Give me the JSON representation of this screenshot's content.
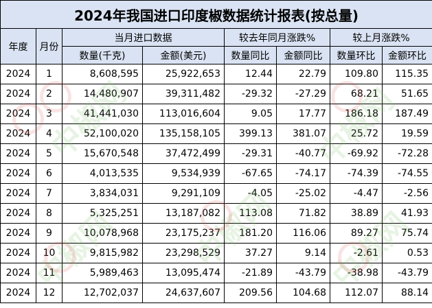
{
  "title": "2024年我国进口印度椒数据统计报表(按总量)",
  "headers": {
    "year": "年度",
    "month": "月份",
    "group_current": "当月进口数据",
    "group_yoy": "较去年同月涨跌%",
    "group_mom": "较上月涨跌%",
    "quantity": "数量(千克)",
    "amount": "金额(美元)",
    "qty_yoy": "数量同比",
    "amt_yoy": "金额同比",
    "qty_mom": "数量环比",
    "amt_mom": "金额环比"
  },
  "rows": [
    {
      "year": "2024",
      "month": "1",
      "quantity": "8,608,595",
      "amount": "25,922,653",
      "qty_yoy": "12.44",
      "amt_yoy": "22.79",
      "qty_mom": "109.80",
      "amt_mom": "115.35"
    },
    {
      "year": "2024",
      "month": "2",
      "quantity": "14,480,907",
      "amount": "39,311,482",
      "qty_yoy": "-29.32",
      "amt_yoy": "-27.29",
      "qty_mom": "68.21",
      "amt_mom": "51.65"
    },
    {
      "year": "2024",
      "month": "3",
      "quantity": "41,441,030",
      "amount": "113,016,604",
      "qty_yoy": "9.05",
      "amt_yoy": "17.77",
      "qty_mom": "186.18",
      "amt_mom": "187.49"
    },
    {
      "year": "2024",
      "month": "4",
      "quantity": "52,100,020",
      "amount": "135,158,105",
      "qty_yoy": "399.13",
      "amt_yoy": "381.07",
      "qty_mom": "25.72",
      "amt_mom": "19.59"
    },
    {
      "year": "2024",
      "month": "5",
      "quantity": "15,670,548",
      "amount": "37,472,499",
      "qty_yoy": "-29.31",
      "amt_yoy": "-40.77",
      "qty_mom": "-69.92",
      "amt_mom": "-72.28"
    },
    {
      "year": "2024",
      "month": "6",
      "quantity": "4,013,535",
      "amount": "9,534,939",
      "qty_yoy": "-67.65",
      "amt_yoy": "-74.17",
      "qty_mom": "-74.39",
      "amt_mom": "-74.55"
    },
    {
      "year": "2024",
      "month": "7",
      "quantity": "3,834,031",
      "amount": "9,291,109",
      "qty_yoy": "-4.05",
      "amt_yoy": "-25.02",
      "qty_mom": "-4.47",
      "amt_mom": "-2.56"
    },
    {
      "year": "2024",
      "month": "8",
      "quantity": "5,325,251",
      "amount": "13,187,082",
      "qty_yoy": "113.08",
      "amt_yoy": "71.82",
      "qty_mom": "38.89",
      "amt_mom": "41.93"
    },
    {
      "year": "2024",
      "month": "9",
      "quantity": "10,078,968",
      "amount": "23,175,237",
      "qty_yoy": "181.20",
      "amt_yoy": "116.06",
      "qty_mom": "89.27",
      "amt_mom": "75.74"
    },
    {
      "year": "2024",
      "month": "10",
      "quantity": "9,815,982",
      "amount": "23,298,529",
      "qty_yoy": "37.27",
      "amt_yoy": "9.14",
      "qty_mom": "-2.61",
      "amt_mom": "0.53"
    },
    {
      "year": "2024",
      "month": "11",
      "quantity": "5,989,463",
      "amount": "13,095,474",
      "qty_yoy": "-21.89",
      "amt_yoy": "-43.79",
      "qty_mom": "-38.98",
      "amt_mom": "-43.79"
    },
    {
      "year": "2024",
      "month": "12",
      "quantity": "12,702,037",
      "amount": "24,637,607",
      "qty_yoy": "209.56",
      "amt_yoy": "104.68",
      "qty_mom": "112.07",
      "amt_mom": "88.14"
    }
  ],
  "watermark_text": "中椒网",
  "colors": {
    "header_bg": "#dae3f3",
    "negative": "#ff0000",
    "grid": "#000000"
  }
}
